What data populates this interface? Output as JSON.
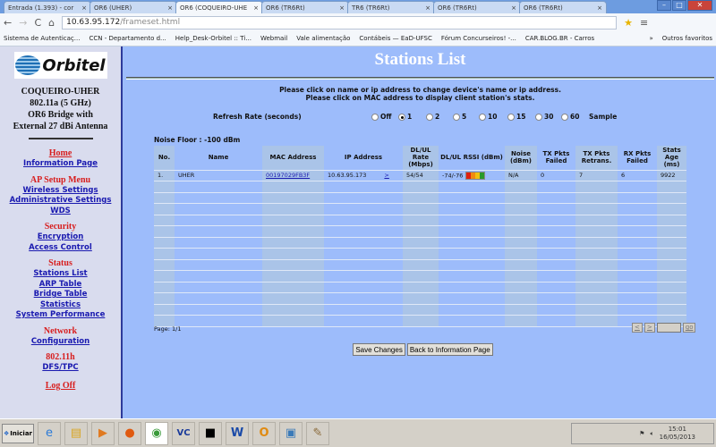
{
  "browser": {
    "tabs": [
      {
        "label": "Entrada (1.393) - cor"
      },
      {
        "label": "OR6 (UHER)"
      },
      {
        "label": "OR6 (COQUEIRO-UHE",
        "active": true
      },
      {
        "label": "OR6 (TR6Rt)"
      },
      {
        "label": "TR6 (TR6Rt)"
      },
      {
        "label": "OR6 (TR6Rt)"
      },
      {
        "label": "OR6 (TR6Rt)"
      }
    ],
    "url_host": "10.63.95.172",
    "url_path": "/frameset.html",
    "bookmarks": [
      "Sistema de Autenticaç...",
      "CCN - Departamento d...",
      "Help_Desk-Orbitel :: Ti...",
      "Webmail",
      "Vale alimentação",
      "Contábeis — EaD-UFSC",
      "Fórum Concurseiros! -...",
      "CAR.BLOG.BR - Carros"
    ],
    "more": "»",
    "other_bookmarks": "Outros favoritos"
  },
  "sidebar": {
    "logo_text": "Orbitel",
    "logo_sub": "REDES INTEGRADAS",
    "device": [
      "COQUEIRO-UHER",
      "802.11a (5 GHz)",
      "OR6 Bridge with",
      "External 27 dBi Antenna"
    ],
    "sections": [
      {
        "title": "Home",
        "links": [
          "Information Page"
        ]
      },
      {
        "title": "AP Setup Menu",
        "links": [
          "Wireless Settings",
          "Administrative Settings",
          "WDS"
        ]
      },
      {
        "title": "Security",
        "links": [
          "Encryption",
          "Access Control"
        ]
      },
      {
        "title": "Status",
        "links": [
          "Stations List",
          "ARP Table",
          "Bridge Table",
          "Statistics",
          "System Performance"
        ]
      },
      {
        "title": "Network",
        "links": [
          "Configuration"
        ]
      },
      {
        "title": "802.11h",
        "links": [
          "DFS/TPC"
        ]
      }
    ],
    "logoff": "Log Off"
  },
  "main": {
    "title": "Stations List",
    "note1": "Please click on name or ip address to change device's name or ip address.",
    "note2": "Please click on MAC address to display client station's stats.",
    "refresh_label": "Refresh Rate (seconds)",
    "refresh_options": [
      "Off",
      "1",
      "2",
      "5",
      "10",
      "15",
      "30",
      "60"
    ],
    "refresh_selected": "1",
    "sample": "Sample",
    "noise_floor": "Noise Floor : -100 dBm",
    "columns": [
      "No.",
      "Name",
      "MAC Address",
      "IP Address",
      "DL/UL Rate (Mbps)",
      "DL/UL RSSI (dBm)",
      "Noise (dBm)",
      "TX Pkts Failed",
      "TX Pkts Retrans.",
      "RX Pkts Failed",
      "Stats Age (ms)"
    ],
    "rows": [
      {
        "no": "1.",
        "name": "UHER",
        "mac": "00197029FB3F",
        "ip": "10.63.95.173",
        "arrow": ">",
        "rate": "54/54",
        "rssi": "-74/-76",
        "rssi_level": 3,
        "noise": "N/A",
        "tx_failed": "0",
        "tx_retrans": "7",
        "rx_failed": "6",
        "age": "9922"
      }
    ],
    "empty_rows": 13,
    "page": "Page: 1/1",
    "pager": {
      "prev": "<",
      "next": ">",
      "go": "go"
    },
    "save": "Save Changes",
    "back": "Back to Information Page"
  },
  "taskbar": {
    "start": "Iniciar",
    "time": "15:01",
    "date": "16/05/2013"
  },
  "colors": {
    "bg": "#9dbcfb",
    "sidebar": "#d9dcee",
    "section": "#d81e1e",
    "link": "#1a1ab0"
  }
}
